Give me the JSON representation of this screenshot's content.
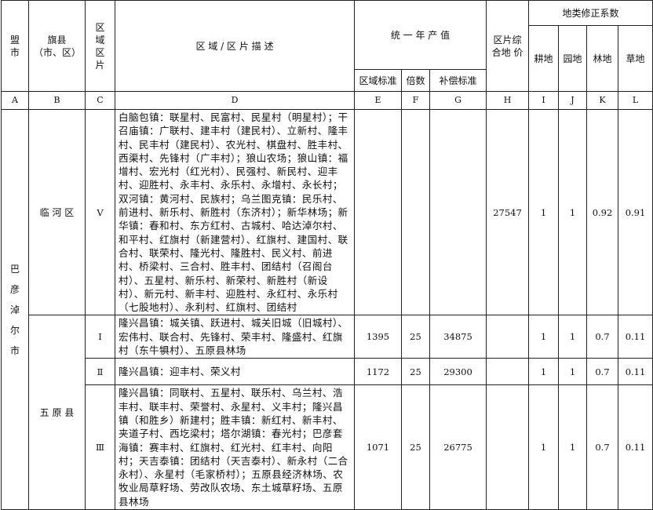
{
  "header": {
    "league_city": "盟市",
    "banner_county": "旗县（市、区）",
    "zone_section": "区域区片",
    "description": "区 域 / 区 片 描 述",
    "annual_output": "统 一 年 产 值",
    "zone_standard": "区域标准",
    "multiple": "倍数",
    "compensation_standard": "补偿标准",
    "composite_price": "区片综合地 价",
    "correction_coefficients": "地类修正系数",
    "arable": "耕地",
    "garden": "园地",
    "forest": "林地",
    "grass": "草地"
  },
  "column_letters": [
    "A",
    "B",
    "C",
    "D",
    "E",
    "F",
    "G",
    "H",
    "I",
    "J",
    "K",
    "L"
  ],
  "league_city": "巴彦淖尔市",
  "rows": [
    {
      "county": "临 河 区",
      "zone": "V",
      "description": "白脑包镇：联星村、民富村、民星村（明星村）；干召庙镇：广联村、建丰村（建民村）、立新村、隆丰村、民丰村（建民村）、农光村、棋盘村、胜丰村、西渠村、先锋村（广丰村）；狼山农场；狼山镇：福增村、宏光村（红光村）、民强村、新民村、迎丰村、迎胜村、永丰村、永乐村、永增村、永长村；双河镇：黄河村、民族村；乌兰图克镇：民乐村、前进村、新乐村、新胜村（东济村）；新华林场；新华镇：春和村、东方红村、古城村、哈达淖尔村、和平村、红旗村（新建营村）、红旗村、建国村、联合村、联荣村、隆光村、隆胜村、民义村、前进村、桥梁村、三合村、胜丰村、团结村（召阁台村）、五星村、新乐村、新荣村、新胜村（新设村）、新元村、新丰村、迎胜村、永红村、永乐村（七股地村）、永利村、红旗村、团结村",
      "zone_standard": "",
      "multiple": "",
      "compensation_standard": "",
      "composite_price": "27547",
      "arable": "1",
      "garden": "1",
      "forest": "0.92",
      "grass": "0.91"
    },
    {
      "county": "五 原 县",
      "zone": "Ⅰ",
      "description": "隆兴昌镇：城关镇、跃进村、城关旧城（旧城村）、宏伟村、联合村、先锋村、荣丰村、隆盛村、红旗村（东牛犋村）、五原县林场",
      "zone_standard": "1395",
      "multiple": "25",
      "compensation_standard": "34875",
      "composite_price": "",
      "arable": "1",
      "garden": "1",
      "forest": "0.7",
      "grass": "0.11"
    },
    {
      "zone": "Ⅱ",
      "description": "隆兴昌镇：迎丰村、荣义村",
      "zone_standard": "1172",
      "multiple": "25",
      "compensation_standard": "29300",
      "composite_price": "",
      "arable": "1",
      "garden": "1",
      "forest": "0.7",
      "grass": "0.11"
    },
    {
      "zone": "Ⅲ",
      "description": "隆兴昌镇：同联村、五星村、联乐村、乌兰村、浩丰村、联丰村、荣誉村、永星村、义丰村；隆兴昌镇（和胜乡）新建村；胜丰镇：新红村、新丰村、夹道子村、西圪梁村；塔尔湖镇：春光村；巴彦套海镇：赛丰村、红旗村、红光村、红丰村、向阳村；天吉泰镇：团结村（天吉泰村）、新永村（二合永村）、永星村（毛家桥村）；五原县经济林场、农牧业局草籽场、劳改队农场、东土城草籽场、五原县林场",
      "zone_standard": "1071",
      "multiple": "25",
      "compensation_standard": "26775",
      "composite_price": "",
      "arable": "1",
      "garden": "1",
      "forest": "0.7",
      "grass": "0.11"
    }
  ]
}
